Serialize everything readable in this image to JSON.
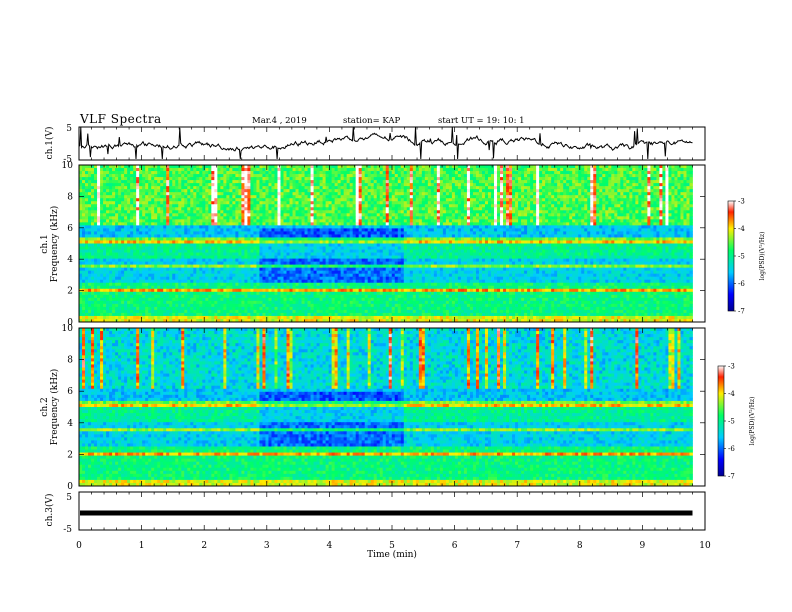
{
  "header": {
    "title": "VLF Spectra",
    "date": "Mar.4 , 2019",
    "station": "station= KAP",
    "start": "start UT = 19: 10: 1"
  },
  "chart_data": [
    {
      "type": "line",
      "name": "ch1-waveform",
      "ylabel": "ch.1(V)",
      "ylim": [
        -5,
        5
      ],
      "yticks": [
        "5",
        "-5"
      ],
      "xlim": [
        0,
        10
      ]
    },
    {
      "type": "heatmap",
      "name": "ch1-spectrogram",
      "ylabel": "ch.1",
      "ylabel2": "Frequency (kHz)",
      "ylim": [
        0,
        10
      ],
      "yticks": [
        "0",
        "2",
        "4",
        "6",
        "8",
        "10"
      ],
      "xlim": [
        0,
        10
      ],
      "colorbar": {
        "label": "log(PSD)(V²/Hz)",
        "ticks": [
          "-3",
          "-4",
          "-5",
          "-6",
          "-7"
        ],
        "range": [
          -7,
          -3
        ]
      }
    },
    {
      "type": "heatmap",
      "name": "ch2-spectrogram",
      "ylabel": "ch.2",
      "ylabel2": "Frequency (kHz)",
      "ylim": [
        0,
        10
      ],
      "yticks": [
        "0",
        "2",
        "4",
        "6",
        "8",
        "10"
      ],
      "xlim": [
        0,
        10
      ],
      "colorbar": {
        "label": "log(PSD)(V²/Hz)",
        "ticks": [
          "-3",
          "-4",
          "-5",
          "-6",
          "-7"
        ],
        "range": [
          -7,
          -3
        ]
      }
    },
    {
      "type": "line",
      "name": "ch3-waveform",
      "ylabel": "ch.3(V)",
      "ylim": [
        -5,
        5
      ],
      "yticks": [
        "5",
        "-5"
      ],
      "xlim": [
        0,
        10
      ],
      "constant_value": -0.6
    }
  ],
  "x_axis": {
    "label": "Time (min)",
    "ticks": [
      "0",
      "1",
      "2",
      "3",
      "4",
      "5",
      "6",
      "7",
      "8",
      "9",
      "10"
    ],
    "range": [
      0,
      10
    ]
  }
}
